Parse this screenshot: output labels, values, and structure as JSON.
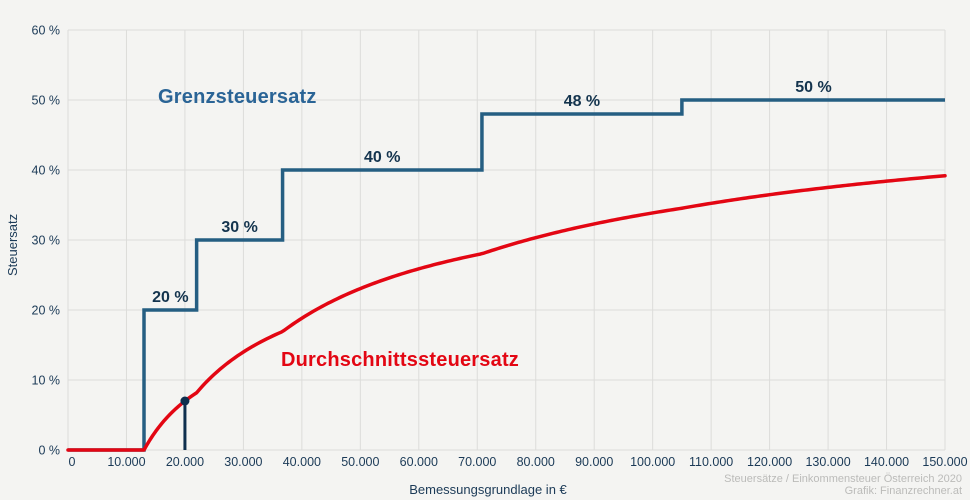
{
  "page": {
    "background": "#f4f4f2",
    "attribution_line1": "Steuersätze / Einkommensteuer Österreich 2020",
    "attribution_line2": "Grafik: Finanzrechner.at"
  },
  "chart_data": {
    "type": "line",
    "title": "",
    "xlabel": "Bemessungsgrundlage in €",
    "ylabel": "Steuersatz",
    "xlim": [
      0,
      150000
    ],
    "ylim": [
      0,
      60
    ],
    "grid": true,
    "legend_position": "inline-labels",
    "x_tick_step": 10000,
    "x_tick_labels": [
      "0",
      "10.000",
      "20.000",
      "30.000",
      "40.000",
      "50.000",
      "60.000",
      "70.000",
      "80.000",
      "90.000",
      "100.000",
      "110.000",
      "120.000",
      "130.000",
      "140.000",
      "150.000"
    ],
    "y_tick_step": 10,
    "y_tick_labels": [
      "0 %",
      "10 %",
      "20 %",
      "30 %",
      "40 %",
      "50 %",
      "60 %"
    ],
    "colors": {
      "marginal_line": "#255e82",
      "marginal_label_text": "#2a6496",
      "average_line": "#e30613",
      "data_label_text": "#14344e",
      "marker": "#0e2f4e",
      "grid": "#dcdcda",
      "tick_text": "#1b3a57",
      "attribution_text": "#bbbbb9"
    },
    "series": [
      {
        "name": "Grenzsteuersatz",
        "kind": "step",
        "brackets": [
          {
            "from": 0,
            "rate": 0,
            "label": ""
          },
          {
            "from": 13000,
            "rate": 20,
            "label": "20 %"
          },
          {
            "from": 22000,
            "rate": 30,
            "label": "30 %"
          },
          {
            "from": 36700,
            "rate": 40,
            "label": "40 %"
          },
          {
            "from": 70800,
            "rate": 48,
            "label": "48 %"
          },
          {
            "from": 105000,
            "rate": 50,
            "label": "50 %"
          }
        ]
      },
      {
        "name": "Durchschnittssteuersatz",
        "kind": "average-of-steps",
        "samples": {
          "x": [
            0,
            10000,
            13000,
            20000,
            30000,
            40000,
            50000,
            60000,
            70000,
            80000,
            90000,
            100000,
            110000,
            120000,
            130000,
            140000,
            150000
          ],
          "y": [
            0,
            0,
            0,
            7.0,
            14.0,
            18.8,
            23.1,
            25.9,
            27.9,
            30.3,
            32.3,
            33.9,
            35.2,
            36.5,
            37.5,
            38.4,
            39.2
          ]
        }
      }
    ],
    "marker": {
      "x": 20000,
      "y": 7.0
    }
  }
}
